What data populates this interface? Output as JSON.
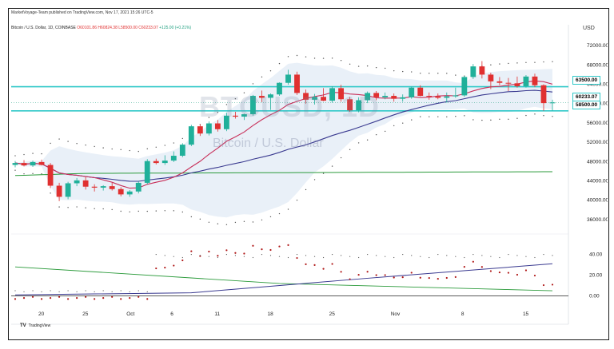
{
  "header": {
    "publisher_line": "MarketVoyage-Team published on TradingView.com, Nov 17, 2021 15:26 UTC-5",
    "symbol_line": "Bitcoin / U.S. Dollar, 1D, COINBASE",
    "open": "O60101.86",
    "high": "H60824.38",
    "low": "L58500.00",
    "close": "C60233.07",
    "change": "+125.00 (+0.21%)",
    "currency": "USD"
  },
  "watermark": {
    "symbol": "BTCUSD, 1D",
    "name": "Bitcoin / U.S. Dollar"
  },
  "badges": {
    "upper_level": "63500.00",
    "last_price": "60233.07",
    "lower_level": "58500.00"
  },
  "brand": {
    "logo": "TV",
    "text": "TradingView"
  },
  "colors": {
    "up": "#20b09a",
    "down": "#e03030",
    "level_line": "#30c8c8",
    "ma_red": "#c8305a",
    "ma_blue": "#3a3a90",
    "ma_green": "#2a9a3a",
    "band_fill": "#dfe9f5",
    "dots_red": "#b01818"
  },
  "chart_data": {
    "type": "candlestick",
    "y_axis_ticks": [
      "72000.00",
      "68000.00",
      "64000.00",
      "60000.00",
      "56000.00",
      "52000.00",
      "48000.00",
      "44000.00",
      "40000.00",
      "36000.00"
    ],
    "ylim": [
      33000,
      75000
    ],
    "x_tick_labels": [
      "20",
      "25",
      "Oct",
      "6",
      "11",
      "18",
      "25",
      "Nov",
      "8",
      "15"
    ],
    "horizontal_levels": [
      63500,
      58500
    ],
    "candles": [
      {
        "o": 47300,
        "h": 48100,
        "l": 46800,
        "c": 47700
      },
      {
        "o": 47700,
        "h": 48300,
        "l": 47000,
        "c": 47200
      },
      {
        "o": 47200,
        "h": 48200,
        "l": 46900,
        "c": 47900
      },
      {
        "o": 47900,
        "h": 48400,
        "l": 47200,
        "c": 47300
      },
      {
        "o": 47300,
        "h": 47700,
        "l": 42500,
        "c": 43000
      },
      {
        "o": 43000,
        "h": 43600,
        "l": 39800,
        "c": 40700
      },
      {
        "o": 40700,
        "h": 43800,
        "l": 40200,
        "c": 43500
      },
      {
        "o": 43500,
        "h": 44600,
        "l": 42900,
        "c": 44100
      },
      {
        "o": 44100,
        "h": 45000,
        "l": 42200,
        "c": 42800
      },
      {
        "o": 42800,
        "h": 43300,
        "l": 41800,
        "c": 42600
      },
      {
        "o": 42600,
        "h": 43100,
        "l": 42000,
        "c": 42900
      },
      {
        "o": 42900,
        "h": 43600,
        "l": 42000,
        "c": 42300
      },
      {
        "o": 42300,
        "h": 42700,
        "l": 40800,
        "c": 41200
      },
      {
        "o": 41200,
        "h": 42100,
        "l": 40700,
        "c": 41800
      },
      {
        "o": 41800,
        "h": 43900,
        "l": 41400,
        "c": 43600
      },
      {
        "o": 43600,
        "h": 48500,
        "l": 43300,
        "c": 48100
      },
      {
        "o": 48100,
        "h": 48600,
        "l": 47400,
        "c": 47700
      },
      {
        "o": 47700,
        "h": 49300,
        "l": 47300,
        "c": 48200
      },
      {
        "o": 48200,
        "h": 50100,
        "l": 47900,
        "c": 49200
      },
      {
        "o": 49200,
        "h": 51800,
        "l": 48900,
        "c": 51500
      },
      {
        "o": 51500,
        "h": 55600,
        "l": 51200,
        "c": 55300
      },
      {
        "o": 55300,
        "h": 55700,
        "l": 53300,
        "c": 53800
      },
      {
        "o": 53800,
        "h": 56300,
        "l": 53400,
        "c": 55900
      },
      {
        "o": 55900,
        "h": 56600,
        "l": 54200,
        "c": 54700
      },
      {
        "o": 54700,
        "h": 58100,
        "l": 54300,
        "c": 57500
      },
      {
        "o": 57500,
        "h": 58300,
        "l": 56900,
        "c": 57300
      },
      {
        "o": 57300,
        "h": 57900,
        "l": 56600,
        "c": 57800
      },
      {
        "o": 57800,
        "h": 61800,
        "l": 57500,
        "c": 61600
      },
      {
        "o": 61600,
        "h": 62700,
        "l": 60300,
        "c": 61200
      },
      {
        "o": 61200,
        "h": 62100,
        "l": 58700,
        "c": 61900
      },
      {
        "o": 61900,
        "h": 64400,
        "l": 61600,
        "c": 64300
      },
      {
        "o": 64300,
        "h": 67000,
        "l": 63900,
        "c": 66000
      },
      {
        "o": 66000,
        "h": 66600,
        "l": 61800,
        "c": 62200
      },
      {
        "o": 62200,
        "h": 62900,
        "l": 60000,
        "c": 60800
      },
      {
        "o": 60800,
        "h": 62000,
        "l": 59800,
        "c": 61400
      },
      {
        "o": 61400,
        "h": 63200,
        "l": 60500,
        "c": 60600
      },
      {
        "o": 60600,
        "h": 63600,
        "l": 60200,
        "c": 63200
      },
      {
        "o": 63200,
        "h": 63900,
        "l": 60400,
        "c": 60900
      },
      {
        "o": 60900,
        "h": 61400,
        "l": 58300,
        "c": 58600
      },
      {
        "o": 58600,
        "h": 61300,
        "l": 58200,
        "c": 60700
      },
      {
        "o": 60700,
        "h": 62500,
        "l": 60100,
        "c": 62200
      },
      {
        "o": 62200,
        "h": 62600,
        "l": 60700,
        "c": 61300
      },
      {
        "o": 61300,
        "h": 62300,
        "l": 60900,
        "c": 61600
      },
      {
        "o": 61600,
        "h": 62100,
        "l": 60400,
        "c": 61000
      },
      {
        "o": 61000,
        "h": 61900,
        "l": 60400,
        "c": 61300
      },
      {
        "o": 61300,
        "h": 63500,
        "l": 61000,
        "c": 63300
      },
      {
        "o": 63300,
        "h": 63800,
        "l": 61500,
        "c": 61600
      },
      {
        "o": 61600,
        "h": 62300,
        "l": 60800,
        "c": 61500
      },
      {
        "o": 61500,
        "h": 62100,
        "l": 60900,
        "c": 61200
      },
      {
        "o": 61200,
        "h": 62300,
        "l": 60200,
        "c": 61500
      },
      {
        "o": 61500,
        "h": 63300,
        "l": 61200,
        "c": 61700
      },
      {
        "o": 61700,
        "h": 65700,
        "l": 61400,
        "c": 65500
      },
      {
        "o": 65500,
        "h": 68200,
        "l": 65100,
        "c": 67700
      },
      {
        "o": 67700,
        "h": 68800,
        "l": 65200,
        "c": 66000
      },
      {
        "o": 66000,
        "h": 66400,
        "l": 63000,
        "c": 64600
      },
      {
        "o": 64600,
        "h": 65500,
        "l": 63800,
        "c": 64300
      },
      {
        "o": 64300,
        "h": 65300,
        "l": 62600,
        "c": 64200
      },
      {
        "o": 64200,
        "h": 65600,
        "l": 63300,
        "c": 63600
      },
      {
        "o": 63600,
        "h": 65900,
        "l": 63300,
        "c": 65600
      },
      {
        "o": 65600,
        "h": 66200,
        "l": 63400,
        "c": 63800
      },
      {
        "o": 63800,
        "h": 64000,
        "l": 58500,
        "c": 60100
      },
      {
        "o": 60100,
        "h": 60800,
        "l": 58500,
        "c": 60233
      }
    ],
    "lower_pane": {
      "y_axis_ticks": [
        "40.00",
        "20.00",
        "0.00"
      ],
      "ylim": [
        -5,
        52
      ]
    }
  }
}
